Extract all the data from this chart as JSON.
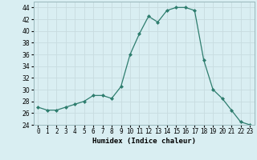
{
  "x": [
    0,
    1,
    2,
    3,
    4,
    5,
    6,
    7,
    8,
    9,
    10,
    11,
    12,
    13,
    14,
    15,
    16,
    17,
    18,
    19,
    20,
    21,
    22,
    23
  ],
  "y": [
    27,
    26.5,
    26.5,
    27,
    27.5,
    28,
    29,
    29,
    28.5,
    30.5,
    36,
    39.5,
    42.5,
    41.5,
    43.5,
    44,
    44,
    43.5,
    35,
    30,
    28.5,
    26.5,
    24.5,
    24
  ],
  "line_color": "#2e7d6e",
  "marker": "D",
  "marker_size": 2.0,
  "bg_color": "#d9eef2",
  "grid_color": "#c8dce0",
  "xlabel": "Humidex (Indice chaleur)",
  "ylim": [
    24,
    45
  ],
  "xlim": [
    -0.5,
    23.5
  ],
  "yticks": [
    24,
    26,
    28,
    30,
    32,
    34,
    36,
    38,
    40,
    42,
    44
  ],
  "xtick_labels": [
    "0",
    "1",
    "2",
    "3",
    "4",
    "5",
    "6",
    "7",
    "8",
    "9",
    "10",
    "11",
    "12",
    "13",
    "14",
    "15",
    "16",
    "17",
    "18",
    "19",
    "20",
    "21",
    "22",
    "23"
  ],
  "tick_label_fontsize": 5.5,
  "axis_label_fontsize": 6.5
}
